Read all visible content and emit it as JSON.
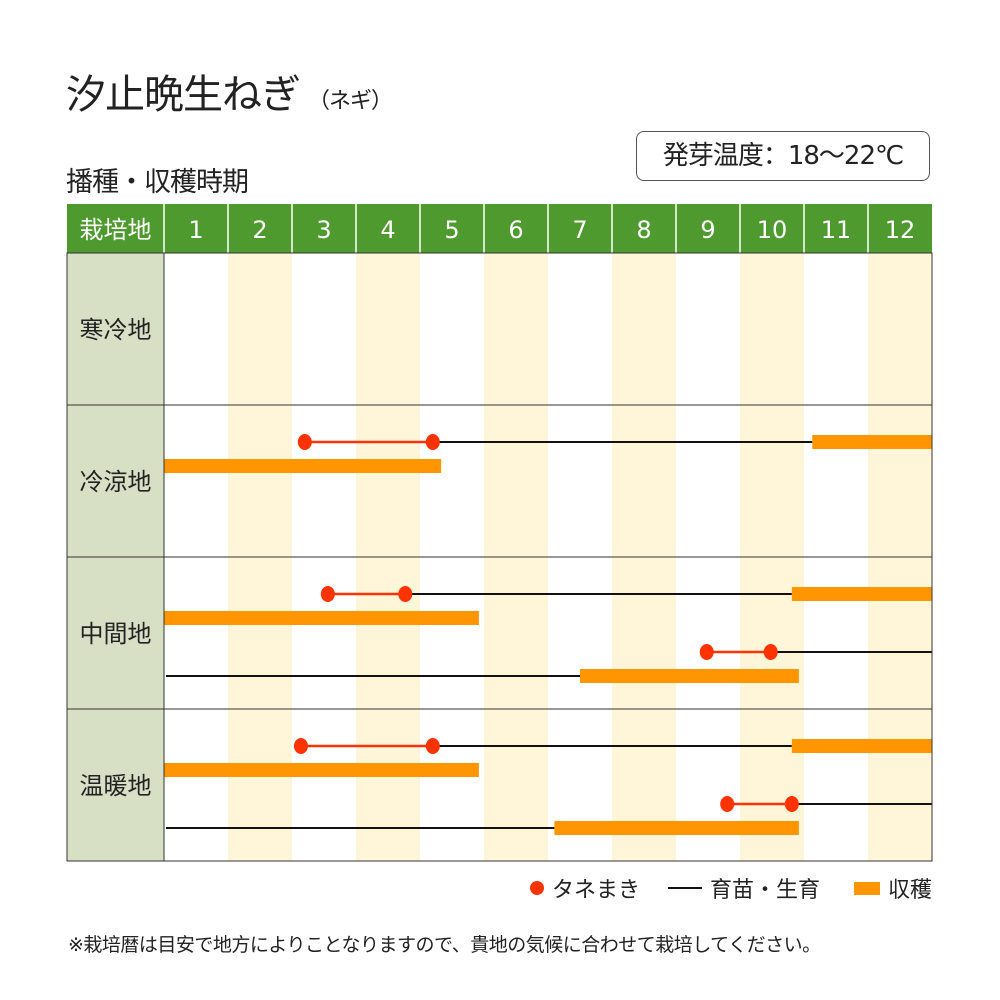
{
  "title": "汐止晩生ねぎ",
  "title_note": "（ネギ）",
  "subtitle": "播種・収穫時期",
  "germination": "発芽温度：18～22℃",
  "chart_data": {
    "type": "gantt",
    "header_label": "栽培地",
    "categories": [
      "1",
      "2",
      "3",
      "4",
      "5",
      "6",
      "7",
      "8",
      "9",
      "10",
      "11",
      "12"
    ],
    "x_unit": "month (1.0 = start of January, 13.0 = end of December)",
    "xlim": [
      1,
      13
    ],
    "colors": {
      "header": "#4f9a2f",
      "label_bg": "#d7e0c5",
      "stripe": "#fff5d8",
      "sowing": "#ff3300",
      "nursery": "#111111",
      "harvest": "#ff9500"
    },
    "rows": [
      {
        "name": "寒冷地",
        "tracks": []
      },
      {
        "name": "冷涼地",
        "tracks": [
          [
            {
              "type": "sowing",
              "from": 3.2,
              "to": 5.2
            },
            {
              "type": "nursery",
              "from": 5.2,
              "to": 11.13
            },
            {
              "type": "harvest",
              "from": 11.13,
              "to": 13
            }
          ],
          [
            {
              "type": "harvest",
              "from": 1,
              "to": 5.33
            }
          ]
        ]
      },
      {
        "name": "中間地",
        "tracks": [
          [
            {
              "type": "sowing",
              "from": 3.56,
              "to": 4.77
            },
            {
              "type": "nursery",
              "from": 4.77,
              "to": 10.81
            },
            {
              "type": "harvest",
              "from": 10.81,
              "to": 13
            }
          ],
          [
            {
              "type": "harvest",
              "from": 1,
              "to": 5.92
            }
          ],
          [
            {
              "type": "sowing",
              "from": 9.48,
              "to": 10.48
            },
            {
              "type": "nursery",
              "from": 10.48,
              "to": 13
            }
          ],
          [
            {
              "type": "nursery",
              "from": 1,
              "to": 7.5
            },
            {
              "type": "harvest",
              "from": 7.5,
              "to": 10.92
            }
          ]
        ]
      },
      {
        "name": "温暖地",
        "tracks": [
          [
            {
              "type": "sowing",
              "from": 3.14,
              "to": 5.2
            },
            {
              "type": "nursery",
              "from": 5.2,
              "to": 10.81
            },
            {
              "type": "harvest",
              "from": 10.81,
              "to": 13
            }
          ],
          [
            {
              "type": "harvest",
              "from": 1,
              "to": 5.92
            }
          ],
          [
            {
              "type": "sowing",
              "from": 9.8,
              "to": 10.81
            },
            {
              "type": "nursery",
              "from": 10.81,
              "to": 13
            }
          ],
          [
            {
              "type": "nursery",
              "from": 1,
              "to": 7.1
            },
            {
              "type": "harvest",
              "from": 7.1,
              "to": 10.92
            }
          ]
        ]
      }
    ],
    "legend": [
      {
        "type": "sowing",
        "label": "タネまき"
      },
      {
        "type": "nursery",
        "label": "育苗・生育"
      },
      {
        "type": "harvest",
        "label": "収穫"
      }
    ]
  },
  "note": "※栽培暦は目安で地方によりことなりますので、貴地の気候に合わせて栽培してください。"
}
